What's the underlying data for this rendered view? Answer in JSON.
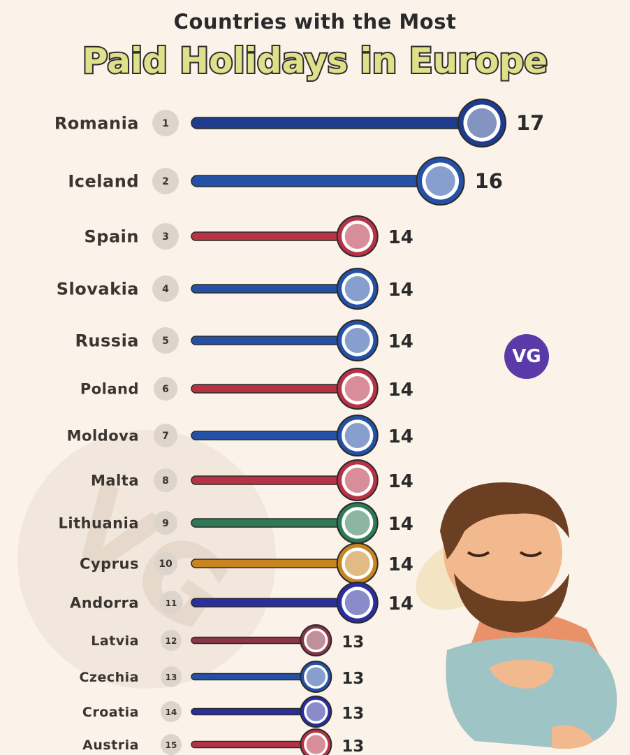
{
  "header": {
    "subtitle": "Countries with the Most",
    "title": "Paid Holidays in Europe"
  },
  "badge_text": "VG",
  "watermark_text": "VG",
  "chart_data": {
    "type": "bar",
    "orientation": "horizontal",
    "title": "Countries with the Most Paid Holidays in Europe",
    "xlabel": "",
    "ylabel": "",
    "xlim": [
      0,
      17
    ],
    "grid": false,
    "categories": [
      "Romania",
      "Iceland",
      "Spain",
      "Slovakia",
      "Russia",
      "Poland",
      "Moldova",
      "Malta",
      "Lithuania",
      "Cyprus",
      "Andorra",
      "Latvia",
      "Czechia",
      "Croatia",
      "Austria"
    ],
    "ranks": [
      "1",
      "2",
      "3",
      "4",
      "5",
      "6",
      "7",
      "8",
      "9",
      "10",
      "11",
      "12",
      "13",
      "14",
      "15"
    ],
    "values": [
      17,
      16,
      14,
      14,
      14,
      14,
      14,
      14,
      14,
      14,
      14,
      13,
      13,
      13,
      13
    ],
    "colors": [
      "#1f3c8c",
      "#2451a6",
      "#b83245",
      "#2451a6",
      "#2451a6",
      "#b83245",
      "#2451a6",
      "#b83245",
      "#2e7a55",
      "#c8841f",
      "#2a2e9e",
      "#8c3448",
      "#2451a6",
      "#2a2e9e",
      "#b83245"
    ]
  }
}
